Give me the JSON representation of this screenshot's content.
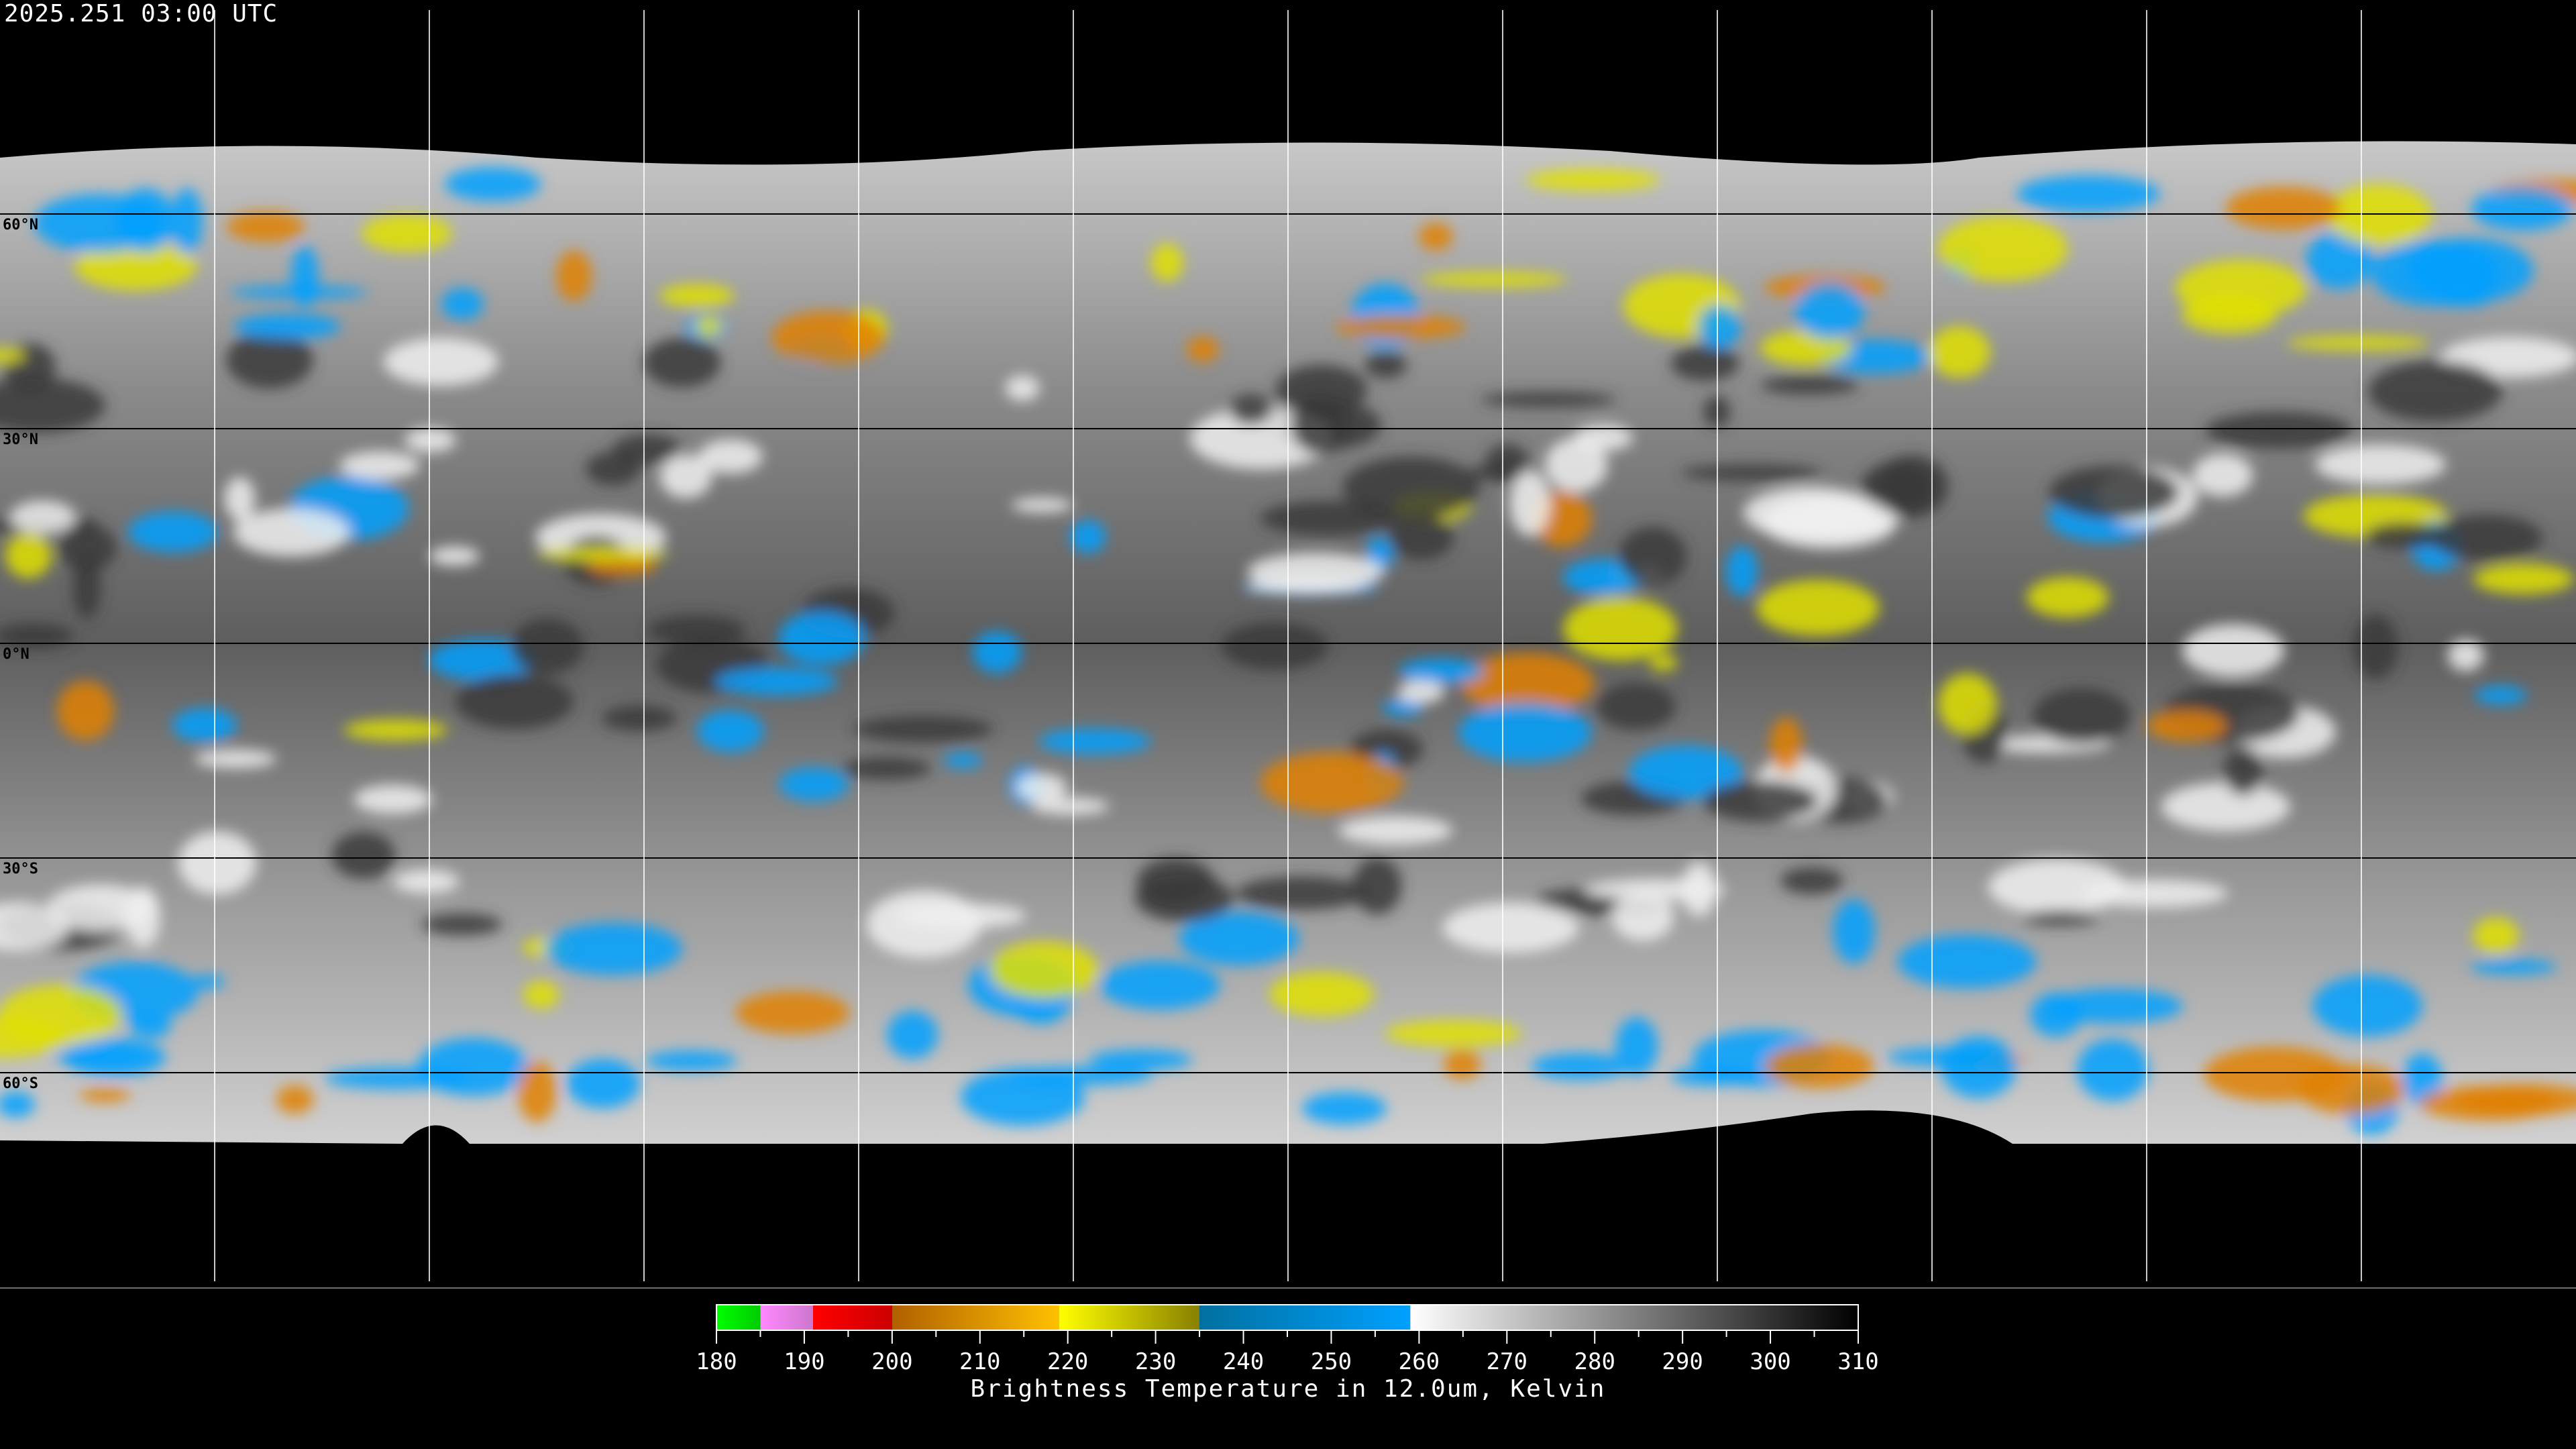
{
  "header": {
    "title": "2025.251 03:00 UTC"
  },
  "map": {
    "projection": "equirectangular",
    "lat_labels": [
      "60°N",
      "30°N",
      "0°N",
      "30°S",
      "60°S"
    ],
    "lat_values": [
      60,
      30,
      0,
      -30,
      -60
    ],
    "gridline_spacing_deg": 30,
    "background": "#000000",
    "coastline_color": "#ffffff"
  },
  "colorbar": {
    "title": "Brightness Temperature in 12.0um, Kelvin",
    "ticks": [
      "180",
      "190",
      "200",
      "210",
      "220",
      "230",
      "240",
      "250",
      "260",
      "270",
      "280",
      "290",
      "300",
      "310"
    ],
    "range": [
      180,
      310
    ],
    "segments": [
      {
        "from": 180,
        "to": 185,
        "start": "#00ff00",
        "end": "#00cc00"
      },
      {
        "from": 185,
        "to": 191,
        "start": "#ff88ff",
        "end": "#cc77cc"
      },
      {
        "from": 191,
        "to": 200,
        "start": "#ff0000",
        "end": "#cc0000"
      },
      {
        "from": 200,
        "to": 219,
        "start": "#b06000",
        "end": "#ffc000"
      },
      {
        "from": 219,
        "to": 235,
        "start": "#ffff00",
        "end": "#888000"
      },
      {
        "from": 235,
        "to": 259,
        "start": "#0070a0",
        "end": "#00a0ff"
      },
      {
        "from": 259,
        "to": 310,
        "start": "#ffffff",
        "end": "#000000"
      }
    ]
  }
}
